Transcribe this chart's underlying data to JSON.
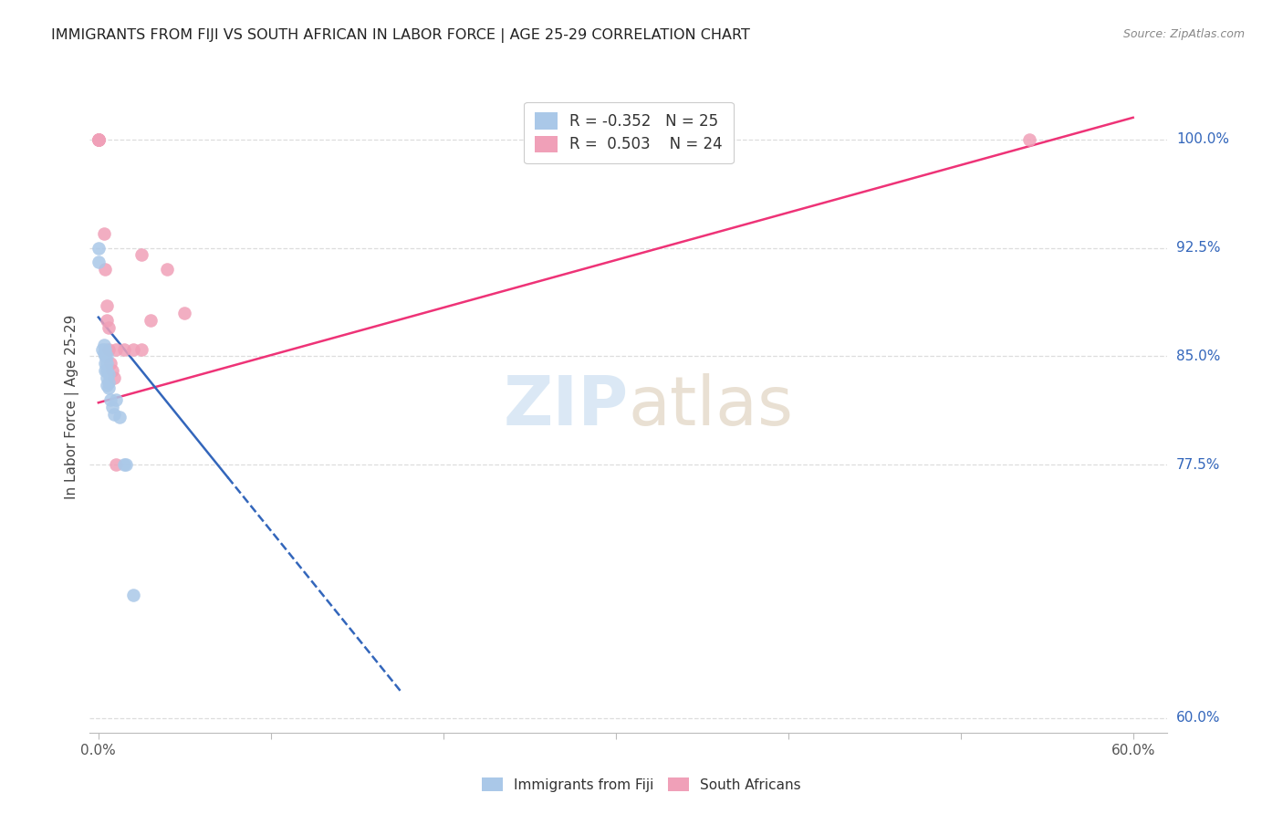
{
  "title": "IMMIGRANTS FROM FIJI VS SOUTH AFRICAN IN LABOR FORCE | AGE 25-29 CORRELATION CHART",
  "source": "Source: ZipAtlas.com",
  "ylabel": "In Labor Force | Age 25-29",
  "ytick_labels": [
    "60.0%",
    "77.5%",
    "85.0%",
    "92.5%",
    "100.0%"
  ],
  "ytick_values": [
    0.6,
    0.775,
    0.85,
    0.925,
    1.0
  ],
  "xmin": -0.005,
  "xmax": 0.62,
  "ymin": 0.59,
  "ymax": 1.04,
  "legend_fiji_r": "-0.352",
  "legend_fiji_n": "25",
  "legend_sa_r": "0.503",
  "legend_sa_n": "24",
  "fiji_color": "#aac8e8",
  "sa_color": "#f0a0b8",
  "fiji_trendline_color": "#3366bb",
  "sa_trendline_color": "#ee3377",
  "fiji_points_x": [
    0.0,
    0.0,
    0.002,
    0.003,
    0.003,
    0.004,
    0.004,
    0.004,
    0.004,
    0.005,
    0.005,
    0.005,
    0.005,
    0.005,
    0.006,
    0.006,
    0.006,
    0.007,
    0.008,
    0.009,
    0.01,
    0.012,
    0.015,
    0.016,
    0.02
  ],
  "fiji_points_y": [
    0.925,
    0.915,
    0.855,
    0.858,
    0.852,
    0.855,
    0.85,
    0.845,
    0.84,
    0.85,
    0.845,
    0.84,
    0.835,
    0.83,
    0.838,
    0.832,
    0.828,
    0.82,
    0.815,
    0.81,
    0.82,
    0.808,
    0.775,
    0.775,
    0.685
  ],
  "sa_points_x": [
    0.0,
    0.0,
    0.0,
    0.0,
    0.0,
    0.003,
    0.004,
    0.005,
    0.005,
    0.006,
    0.006,
    0.007,
    0.008,
    0.009,
    0.01,
    0.01,
    0.015,
    0.02,
    0.025,
    0.025,
    0.03,
    0.04,
    0.05,
    0.54
  ],
  "sa_points_y": [
    1.0,
    1.0,
    1.0,
    1.0,
    1.0,
    0.935,
    0.91,
    0.885,
    0.875,
    0.87,
    0.855,
    0.845,
    0.84,
    0.835,
    0.855,
    0.775,
    0.855,
    0.855,
    0.92,
    0.855,
    0.875,
    0.91,
    0.88,
    1.0
  ],
  "fiji_trend_x0": 0.0,
  "fiji_trend_x1": 0.175,
  "fiji_trend_y0": 0.877,
  "fiji_trend_y1": 0.619,
  "fiji_trend_solid_end": 0.075,
  "sa_trend_x0": 0.0,
  "sa_trend_x1": 0.6,
  "sa_trend_y0": 0.818,
  "sa_trend_y1": 1.015,
  "background_color": "#ffffff",
  "grid_color": "#dddddd",
  "title_color": "#222222",
  "right_label_color": "#3366bb",
  "marker_size": 110
}
